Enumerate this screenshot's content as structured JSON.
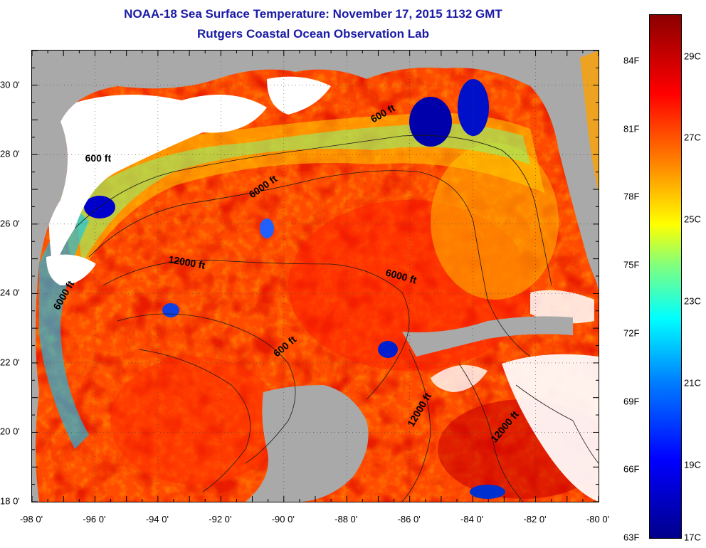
{
  "titles": {
    "line1": "NOAA-18 Sea Surface Temperature:  November 17, 2015 1132 GMT",
    "line2": "Rutgers Coastal Ocean Observation Lab"
  },
  "map": {
    "region": "Gulf of Mexico",
    "lon_range": [
      -98,
      -80
    ],
    "lat_range": [
      18,
      31
    ],
    "x_tick_labels": [
      "-98 0'",
      "-96 0'",
      "-94 0'",
      "-92 0'",
      "-90 0'",
      "-88 0'",
      "-86 0'",
      "-84 0'",
      "-82 0'",
      "-80 0'"
    ],
    "y_tick_labels": [
      "30 0'",
      "28 0'",
      "26 0'",
      "24 0'",
      "22 0'",
      "20 0'",
      "18 0'"
    ],
    "contour_labels": [
      {
        "text": "600 ft",
        "lon": -95.9,
        "lat": 27.8
      },
      {
        "text": "600 ft",
        "lon": -86.8,
        "lat": 29.1
      },
      {
        "text": "6000 ft",
        "lon": -90.6,
        "lat": 27.0
      },
      {
        "text": "12000 ft",
        "lon": -93.1,
        "lat": 24.8
      },
      {
        "text": "6000 ft",
        "lon": -86.3,
        "lat": 24.4
      },
      {
        "text": "6000 ft",
        "lon": -96.9,
        "lat": 23.9
      },
      {
        "text": "600 ft",
        "lon": -89.9,
        "lat": 22.4
      },
      {
        "text": "12000 ft",
        "lon": -85.6,
        "lat": 20.6
      },
      {
        "text": "12000 ft",
        "lon": -82.9,
        "lat": 20.1
      }
    ]
  },
  "colorbar": {
    "f_labels": [
      "84F",
      "81F",
      "78F",
      "75F",
      "72F",
      "69F",
      "66F",
      "63F"
    ],
    "c_labels": [
      "29C",
      "27C",
      "25C",
      "23C",
      "21C",
      "19C",
      "17C"
    ],
    "f_values": [
      84,
      81,
      78,
      75,
      72,
      69,
      66,
      63
    ],
    "c_values": [
      29,
      27,
      25,
      23,
      21,
      19,
      17
    ],
    "colors": {
      "hot": "#8b0000",
      "warm": "#ff3000",
      "mid": "#ffff00",
      "cool": "#00ffff",
      "cold": "#00008b",
      "land": "#a9a9a9",
      "cloud": "#ffffff"
    }
  }
}
